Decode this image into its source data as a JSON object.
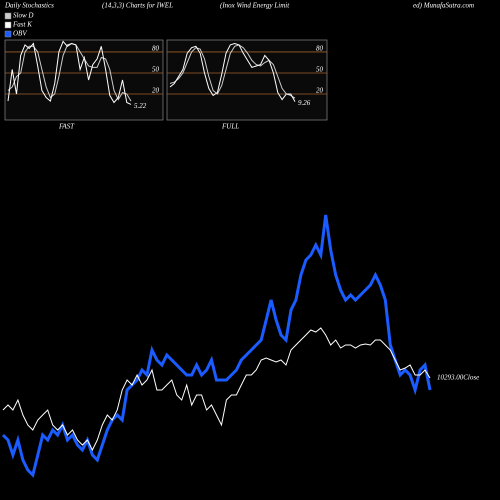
{
  "header": {
    "texts": [
      "Daily Stochastics",
      "(14,3,3) Charts for IWEL",
      "(Inox Wind Energy Limit",
      "ed) MunafaSutra.com"
    ]
  },
  "chart_data": [
    {
      "type": "line",
      "label": "FAST",
      "last_label": "5.22",
      "ylim": [
        -17,
        97
      ],
      "yticks": [
        20,
        50,
        80
      ],
      "grid": true,
      "series": [
        {
          "name": "Slow D",
          "color": "#cccccc",
          "values": [
            25,
            30,
            45,
            50,
            80,
            88,
            88,
            80,
            55,
            30,
            15,
            20,
            45,
            75,
            90,
            92,
            90,
            80,
            70,
            60,
            58,
            58,
            72,
            70,
            55,
            25,
            12,
            22,
            20,
            10
          ]
        },
        {
          "name": "Fast K",
          "color": "#ffffff",
          "values": [
            10,
            55,
            20,
            75,
            90,
            85,
            92,
            60,
            25,
            15,
            10,
            35,
            80,
            95,
            88,
            92,
            90,
            55,
            72,
            40,
            62,
            70,
            88,
            55,
            18,
            8,
            15,
            40,
            8,
            5.22
          ]
        }
      ]
    },
    {
      "type": "line",
      "label": "FULL",
      "last_label": "9.26",
      "ylim": [
        -17,
        97
      ],
      "yticks": [
        20,
        50,
        80
      ],
      "grid": true,
      "series": [
        {
          "color": "#cccccc",
          "values": [
            35,
            37,
            42,
            50,
            65,
            80,
            86,
            84,
            70,
            45,
            25,
            20,
            32,
            55,
            78,
            88,
            90,
            86,
            78,
            68,
            62,
            60,
            65,
            68,
            62,
            45,
            28,
            20,
            18,
            14
          ]
        },
        {
          "color": "#ffffff",
          "values": [
            30,
            35,
            45,
            55,
            78,
            86,
            88,
            78,
            50,
            28,
            18,
            22,
            48,
            78,
            90,
            92,
            90,
            78,
            68,
            58,
            60,
            62,
            75,
            68,
            50,
            22,
            12,
            20,
            20,
            9.26
          ]
        }
      ]
    },
    {
      "type": "line",
      "close_label": "10293.00Close",
      "ylim": [
        0,
        280
      ],
      "series": [
        {
          "name": "OBV",
          "color": "#1a5cff",
          "values": [
            45,
            40,
            25,
            40,
            20,
            10,
            5,
            25,
            45,
            40,
            50,
            45,
            55,
            40,
            45,
            35,
            30,
            40,
            25,
            20,
            35,
            50,
            60,
            65,
            60,
            90,
            95,
            100,
            110,
            105,
            130,
            120,
            115,
            125,
            120,
            115,
            110,
            105,
            105,
            115,
            105,
            110,
            120,
            100,
            100,
            100,
            105,
            110,
            120,
            125,
            130,
            135,
            140,
            160,
            180,
            160,
            145,
            140,
            170,
            180,
            205,
            220,
            225,
            235,
            225,
            265,
            230,
            205,
            190,
            180,
            185,
            180,
            185,
            190,
            195,
            205,
            195,
            180,
            135,
            120,
            105,
            110,
            105,
            90,
            110,
            115,
            90
          ]
        },
        {
          "color": "#ffffff",
          "values": [
            70,
            75,
            70,
            80,
            65,
            55,
            50,
            60,
            65,
            70,
            55,
            50,
            55,
            45,
            50,
            40,
            35,
            40,
            30,
            40,
            55,
            65,
            60,
            70,
            90,
            100,
            95,
            105,
            95,
            100,
            110,
            90,
            90,
            95,
            100,
            85,
            80,
            95,
            75,
            85,
            85,
            70,
            75,
            65,
            55,
            80,
            85,
            85,
            95,
            105,
            105,
            110,
            120,
            122,
            120,
            118,
            120,
            115,
            130,
            135,
            140,
            145,
            150,
            148,
            152,
            145,
            135,
            140,
            132,
            135,
            135,
            132,
            135,
            136,
            135,
            140,
            140,
            135,
            130,
            120,
            110,
            112,
            115,
            105,
            105,
            110,
            102
          ]
        }
      ]
    }
  ]
}
